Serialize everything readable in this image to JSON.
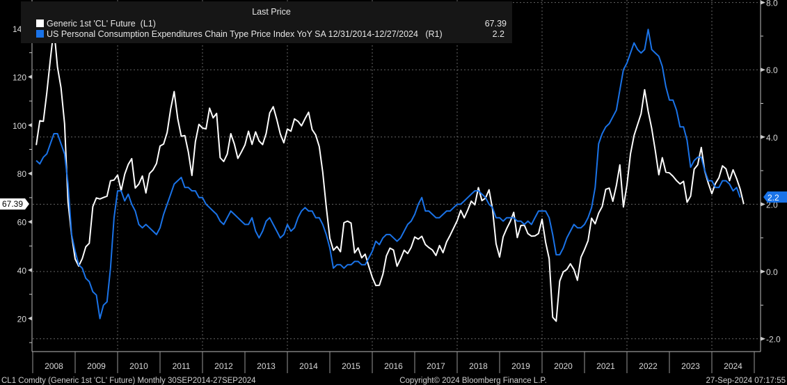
{
  "legend": {
    "header": "Last Price",
    "entries": [
      {
        "label": "Generic 1st 'CL' Future  (L1)",
        "value": "67.39",
        "color": "#ffffff"
      },
      {
        "label": "US Personal Consumption Expenditures Chain Type Price Index YoY SA 12/31/2014-12/27/2024   (R1)",
        "value": "2.2",
        "color": "#1a73e8"
      }
    ]
  },
  "last_price_tags": {
    "left": "67.39",
    "right": "2.2"
  },
  "footer": {
    "left": "CL1 Comdty (Generic 1st 'CL' Future)  Monthly 30SEP2014-27SEP2024",
    "center": "Copyright© 2024 Bloomberg Finance L.P.",
    "right": "27-Sep-2024 07:17:55"
  },
  "chart_data": {
    "type": "line",
    "title": "",
    "x_start": "2008-01",
    "frequency": "monthly",
    "x_ticks": [
      "2008",
      "2009",
      "2010",
      "2011",
      "2012",
      "2013",
      "2014",
      "2015",
      "2016",
      "2017",
      "2018",
      "2019",
      "2020",
      "2021",
      "2022",
      "2023",
      "2024"
    ],
    "y_left": {
      "ticks": [
        "20",
        "40",
        "60",
        "80",
        "100",
        "120",
        "140"
      ],
      "range": [
        5,
        155
      ]
    },
    "y_right": {
      "ticks": [
        "-2.0",
        "0.0",
        "2.0",
        "4.0",
        "6.0",
        "8.0"
      ],
      "range": [
        -2.4,
        8.1
      ]
    },
    "grid": true,
    "legend_placement": "top-left",
    "series": [
      {
        "name": "Generic 1st 'CL' Future  (L1)",
        "axis": "left",
        "color": "#ffffff",
        "values": [
          91.75,
          101.84,
          101.58,
          113.46,
          127.35,
          140.0,
          124.08,
          115.46,
          100.64,
          68.1,
          54.43,
          44.6,
          41.68,
          44.76,
          49.66,
          51.12,
          66.31,
          69.89,
          69.45,
          70.05,
          70.61,
          77.0,
          77.28,
          79.36,
          72.89,
          79.66,
          83.76,
          86.15,
          73.97,
          75.63,
          78.95,
          71.92,
          79.97,
          81.43,
          84.11,
          91.38,
          92.19,
          96.97,
          106.72,
          113.93,
          102.7,
          95.42,
          95.7,
          88.81,
          79.2,
          93.19,
          100.36,
          98.83,
          98.48,
          107.07,
          103.02,
          104.87,
          86.53,
          84.96,
          88.06,
          96.47,
          92.19,
          86.24,
          88.91,
          91.82,
          97.49,
          92.05,
          97.23,
          93.46,
          91.97,
          96.56,
          105.03,
          107.65,
          102.33,
          96.38,
          92.72,
          98.42,
          97.49,
          102.59,
          101.58,
          99.74,
          102.71,
          105.37,
          98.17,
          95.96,
          91.16,
          80.54,
          66.15,
          53.27,
          48.24,
          49.76,
          47.6,
          59.63,
          60.3,
          59.47,
          47.12,
          49.2,
          45.09,
          46.59,
          41.65,
          37.04,
          33.62,
          33.75,
          38.34,
          45.92,
          49.1,
          48.33,
          41.6,
          44.7,
          48.24,
          46.86,
          49.44,
          53.72,
          52.81,
          54.01,
          50.6,
          49.33,
          48.32,
          46.04,
          50.17,
          47.23,
          51.67,
          54.38,
          57.4,
          60.42,
          64.73,
          61.64,
          64.94,
          68.57,
          67.04,
          74.15,
          68.76,
          69.8,
          73.25,
          65.31,
          50.93,
          45.41,
          53.79,
          57.22,
          60.14,
          63.91,
          53.5,
          58.47,
          58.58,
          55.1,
          54.07,
          54.18,
          55.17,
          61.06,
          51.56,
          44.76,
          20.48,
          18.84,
          35.49,
          39.27,
          40.27,
          42.61,
          40.22,
          35.79,
          45.34,
          48.52,
          52.2,
          61.5,
          59.16,
          63.58,
          66.32,
          73.47,
          73.95,
          68.5,
          75.03,
          83.57,
          66.18,
          75.21,
          88.15,
          95.72,
          100.28,
          104.69,
          114.67,
          105.76,
          98.62,
          89.55,
          79.49,
          86.53,
          80.55,
          80.26,
          78.87,
          77.05,
          75.67,
          76.78,
          68.09,
          70.64,
          81.8,
          83.63,
          90.79,
          81.02,
          75.96,
          71.65,
          75.85,
          78.26,
          83.17,
          81.93,
          76.99,
          81.54,
          77.91,
          73.55,
          67.39
        ]
      },
      {
        "name": "US Personal Consumption Expenditures Chain Type Price Index YoY SA 12/31/2014-12/27/2024   (R1)",
        "axis": "right",
        "color": "#1a73e8",
        "values": [
          3.3,
          3.2,
          3.4,
          3.5,
          3.8,
          4.1,
          4.1,
          3.8,
          3.5,
          2.6,
          1.1,
          0.6,
          0.2,
          0.1,
          -0.2,
          -0.3,
          -0.6,
          -0.7,
          -1.4,
          -1.0,
          -0.9,
          0.1,
          1.6,
          2.4,
          2.4,
          2.1,
          2.3,
          2.0,
          1.8,
          1.4,
          1.3,
          1.4,
          1.3,
          1.2,
          1.1,
          1.3,
          1.7,
          2.0,
          2.3,
          2.6,
          2.7,
          2.8,
          2.5,
          2.5,
          2.4,
          2.4,
          2.2,
          2.2,
          2.0,
          1.9,
          1.8,
          1.7,
          1.5,
          1.4,
          1.6,
          1.8,
          1.7,
          1.6,
          1.5,
          1.4,
          1.4,
          1.6,
          1.2,
          1.0,
          1.2,
          1.5,
          1.6,
          1.4,
          1.2,
          1.0,
          1.1,
          1.4,
          1.2,
          1.3,
          1.6,
          1.8,
          1.9,
          1.8,
          1.8,
          1.6,
          1.6,
          1.4,
          1.1,
          0.7,
          0.1,
          0.2,
          0.2,
          0.1,
          0.2,
          0.2,
          0.3,
          0.3,
          0.2,
          0.2,
          0.4,
          0.6,
          0.9,
          0.8,
          1.0,
          1.1,
          1.1,
          1.0,
          0.9,
          1.0,
          1.2,
          1.4,
          1.5,
          1.7,
          2.0,
          2.2,
          1.8,
          1.8,
          1.7,
          1.6,
          1.6,
          1.7,
          1.8,
          1.8,
          1.9,
          2.0,
          2.0,
          2.1,
          2.2,
          2.3,
          2.4,
          2.4,
          2.3,
          2.2,
          2.0,
          1.9,
          1.6,
          1.6,
          1.5,
          1.6,
          1.6,
          1.6,
          1.5,
          1.5,
          1.4,
          1.5,
          1.4,
          1.6,
          1.8,
          1.8,
          1.8,
          1.6,
          1.1,
          0.5,
          0.5,
          0.7,
          1.0,
          1.2,
          1.4,
          1.3,
          1.3,
          1.4,
          1.6,
          1.9,
          2.5,
          3.8,
          4.1,
          4.3,
          4.4,
          4.6,
          4.8,
          5.4,
          6.0,
          6.2,
          6.5,
          6.8,
          6.6,
          6.5,
          6.6,
          7.2,
          6.6,
          6.5,
          6.4,
          6.1,
          5.5,
          5.1,
          5.1,
          4.8,
          4.3,
          4.3,
          3.9,
          3.1,
          3.3,
          3.4,
          3.4,
          3.0,
          2.7,
          2.7,
          2.5,
          2.5,
          2.7,
          2.7,
          2.6,
          2.4,
          2.5,
          2.2
        ]
      }
    ]
  }
}
